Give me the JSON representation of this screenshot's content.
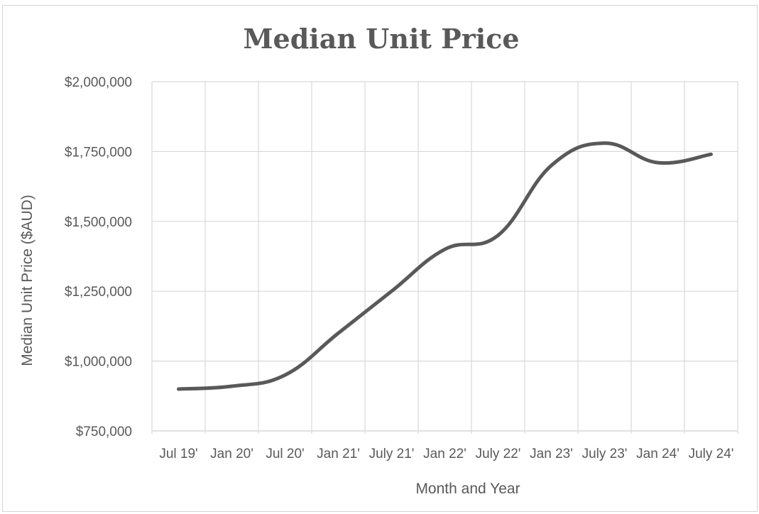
{
  "chart_data": {
    "type": "line",
    "title": "Median Unit Price",
    "xlabel": "Month and Year",
    "ylabel": "Median Unit  Price ($AUD)",
    "categories": [
      "Jul 19'",
      "Jan 20'",
      "Jul 20'",
      "Jan 21'",
      "July 21'",
      "Jan 22'",
      "July 22'",
      "Jan 23'",
      "July 23'",
      "Jan 24'",
      "July 24'"
    ],
    "series": [
      {
        "values": [
          900000,
          910000,
          950000,
          1100000,
          1250000,
          1400000,
          1450000,
          1700000,
          1780000,
          1710000,
          1740000
        ]
      }
    ],
    "ylim": [
      750000,
      2000000
    ],
    "yticks": [
      "$750,000",
      "$1,000,000",
      "$1,250,000",
      "$1,500,000",
      "$1,750,000",
      "$2,000,000"
    ],
    "ytick_values": [
      750000,
      1000000,
      1250000,
      1500000,
      1750000,
      2000000
    ],
    "grid": true,
    "legend": "none",
    "colors": {
      "line": "#595959",
      "grid": "#d9d9d9",
      "text": "#595959"
    }
  }
}
